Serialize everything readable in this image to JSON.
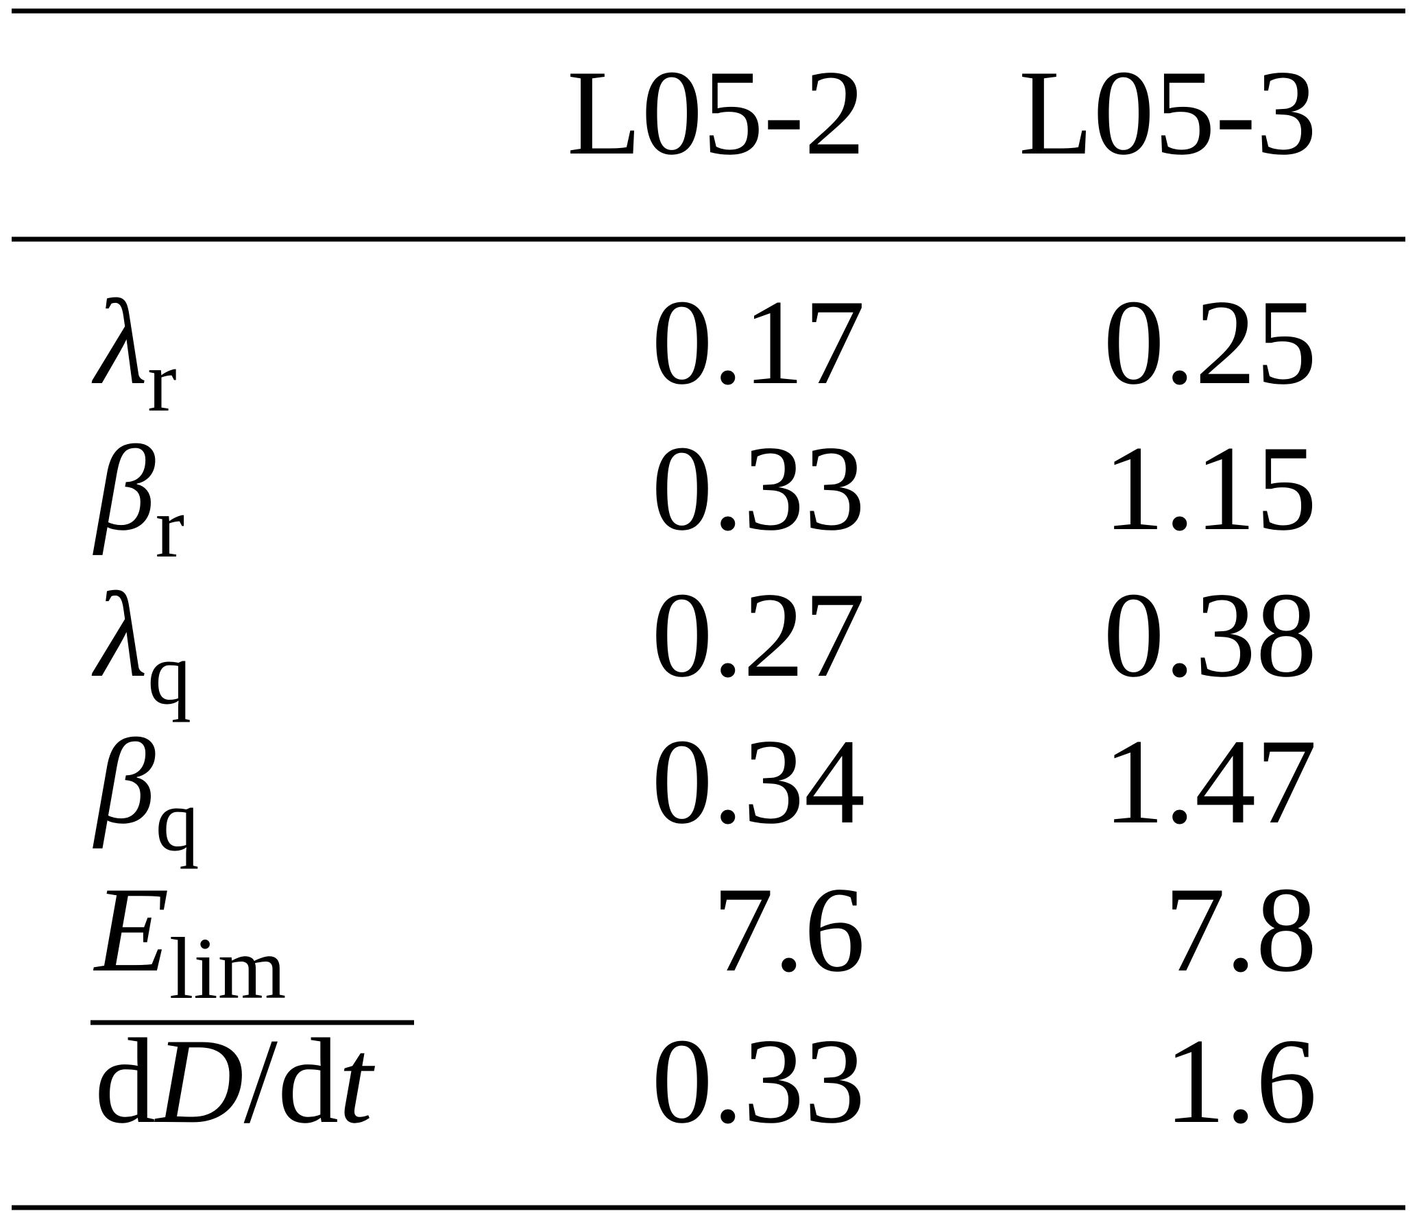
{
  "table": {
    "columns": [
      "L05-2",
      "L05-3"
    ],
    "rows": [
      {
        "label": [
          {
            "text": "λ",
            "italic": true
          },
          {
            "text": "r",
            "sub": true
          }
        ],
        "values": [
          0.17,
          0.25
        ]
      },
      {
        "label": [
          {
            "text": "β",
            "italic": true
          },
          {
            "text": "r",
            "sub": true
          }
        ],
        "values": [
          0.33,
          1.15
        ]
      },
      {
        "label": [
          {
            "text": "λ",
            "italic": true
          },
          {
            "text": "q",
            "sub": true
          }
        ],
        "values": [
          0.27,
          0.38
        ]
      },
      {
        "label": [
          {
            "text": "β",
            "italic": true
          },
          {
            "text": "q",
            "sub": true
          }
        ],
        "values": [
          0.34,
          1.47
        ]
      },
      {
        "label": [
          {
            "text": "E",
            "italic": true
          },
          {
            "text": "lim",
            "sub": true
          }
        ],
        "values": [
          7.6,
          7.8
        ]
      },
      {
        "label": [
          {
            "text": "d"
          },
          {
            "text": "D",
            "italic": true
          },
          {
            "text": "/"
          },
          {
            "text": "d"
          },
          {
            "text": "t",
            "italic": true
          }
        ],
        "values": [
          0.33,
          1.6
        ]
      }
    ]
  }
}
